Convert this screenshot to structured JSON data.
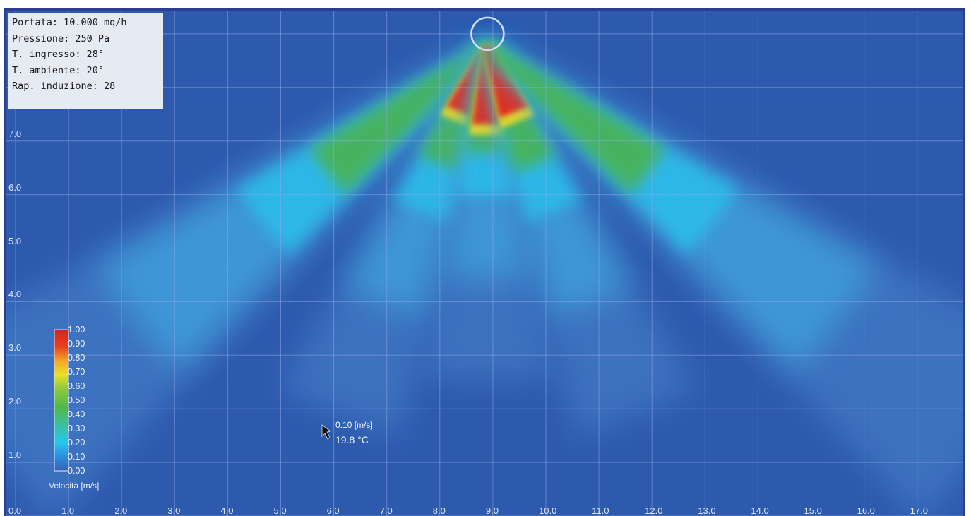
{
  "info_box": {
    "lines": [
      "Portata: 10.000 mq/h",
      "Pressione: 250 Pa",
      "T. ingresso: 28°",
      "T. ambiente: 20°",
      "Rap. induzione: 28"
    ]
  },
  "probe": {
    "velocity": "0.10 [m/s]",
    "temperature": "19.8 °C",
    "x": 5.85,
    "y": 1.6
  },
  "colors": {
    "background": "#2e5aae",
    "grid": "#8fa6e6",
    "scale": [
      "#3a5fb6",
      "#2a9de6",
      "#27c6f0",
      "#4fb84a",
      "#4cae3e",
      "#e6e02a",
      "#f0a020",
      "#e83020",
      "#d8241e"
    ]
  },
  "chart_data": {
    "type": "heatmap",
    "title": "",
    "xlabel": "",
    "ylabel": "",
    "x_ticks": [
      "0.0",
      "1.0",
      "2.0",
      "3.0",
      "4.0",
      "5.0",
      "6.0",
      "7.0",
      "8.0",
      "9.0",
      "10.0",
      "11.0",
      "12.0",
      "13.0",
      "14.0",
      "15.0",
      "16.0",
      "17.0"
    ],
    "y_ticks": [
      "1.0",
      "2.0",
      "3.0",
      "4.0",
      "5.0",
      "6.0",
      "7.0"
    ],
    "xlim": [
      0,
      17.7
    ],
    "ylim": [
      0,
      9.3
    ],
    "grid": true,
    "colorbar": {
      "title": "Velocità [m/s]",
      "labels": [
        "1.00",
        "0.90",
        "0.80",
        "0.70",
        "0.60",
        "0.50",
        "0.40",
        "0.30",
        "0.20",
        "0.10",
        "0.00"
      ],
      "range": [
        0,
        1
      ],
      "placement": "bottom-left"
    },
    "diffuser": {
      "x": 8.9,
      "y": 9.0
    },
    "jets": [
      {
        "direction_deg_from_vertical": -52,
        "max_velocity": 1.0
      },
      {
        "direction_deg_from_vertical": -22,
        "max_velocity": 1.0
      },
      {
        "direction_deg_from_vertical": 0,
        "max_velocity": 1.0
      },
      {
        "direction_deg_from_vertical": 22,
        "max_velocity": 1.0
      },
      {
        "direction_deg_from_vertical": 52,
        "max_velocity": 1.0
      }
    ]
  }
}
